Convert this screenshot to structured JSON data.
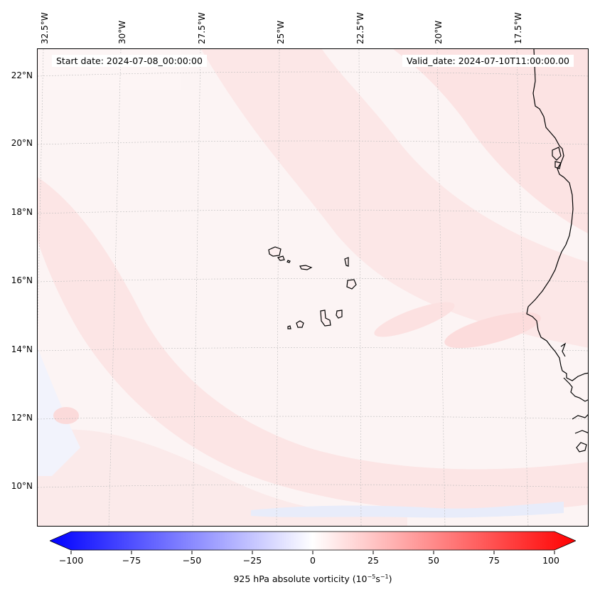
{
  "map": {
    "start_date": "Start date: 2024-07-08_00:00:00",
    "valid_date": "Valid_date: 2024-07-10T11:00:00.00",
    "lon_labels": [
      "32.5°W",
      "30°W",
      "27.5°W",
      "25°W",
      "22.5°W",
      "20°W",
      "17.5°W"
    ],
    "lat_labels": [
      "22°N",
      "20°N",
      "18°N",
      "16°N",
      "14°N",
      "12°N",
      "10°N"
    ],
    "background_color": "#fcf3f3",
    "land_outline_color": "#000000",
    "gridline_color": "#bbbbbb"
  },
  "colorbar": {
    "ticks": [
      "−100",
      "−75",
      "−50",
      "−25",
      "0",
      "25",
      "50",
      "75",
      "100"
    ],
    "min": -100,
    "max": 100,
    "low_color": "#0000ff",
    "mid_color": "#ffffff",
    "high_color": "#ff0000",
    "label_prefix": "925 hPa absolute vorticity (10",
    "label_exp1": "−5",
    "label_mid": "s",
    "label_exp2": "−1",
    "label_suffix": ")"
  }
}
